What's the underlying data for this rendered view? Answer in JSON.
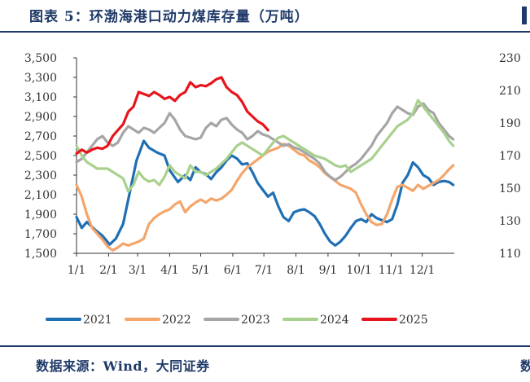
{
  "header": {
    "title": "图表 5：环渤海港口动力煤库存量（万吨）"
  },
  "footer": {
    "source": "数据来源：Wind，大同证券",
    "clipped_text": "数"
  },
  "chart_data": {
    "type": "line",
    "title": "图表 5：环渤海港口动力煤库存量（万吨）",
    "unit": "万吨",
    "x_ticks": [
      "1/1",
      "2/1",
      "3/1",
      "4/1",
      "5/1",
      "6/1",
      "7/1",
      "8/1",
      "9/1",
      "10/1",
      "11/1",
      "12/1"
    ],
    "x_range": [
      0,
      365
    ],
    "y_left_range": [
      1500,
      3500
    ],
    "y_left_ticks": [
      1500,
      1700,
      1900,
      2100,
      2300,
      2500,
      2700,
      2900,
      3100,
      3300,
      3500
    ],
    "y_right_range": [
      110,
      230
    ],
    "y_right_ticks": [
      110,
      130,
      150,
      170,
      190,
      210,
      230
    ],
    "legend_position": "bottom",
    "series": [
      {
        "name": "2021",
        "color": "#1f6fb4",
        "axis": "left",
        "x": [
          0,
          5,
          10,
          18,
          25,
          32,
          38,
          45,
          52,
          58,
          65,
          70,
          78,
          85,
          90,
          98,
          105,
          110,
          115,
          120,
          125,
          130,
          135,
          140,
          145,
          150,
          155,
          160,
          165,
          170,
          175,
          180,
          185,
          190,
          195,
          200,
          205,
          210,
          215,
          220,
          225,
          230,
          235,
          240,
          245,
          250,
          255,
          260,
          265,
          270,
          275,
          280,
          285,
          290,
          295,
          300,
          305,
          310,
          315,
          320,
          325,
          330,
          335,
          340,
          345,
          350,
          355,
          360,
          364
        ],
        "y": [
          1870,
          1760,
          1820,
          1740,
          1680,
          1590,
          1650,
          1800,
          2150,
          2450,
          2650,
          2580,
          2530,
          2500,
          2350,
          2230,
          2300,
          2250,
          2380,
          2330,
          2310,
          2260,
          2330,
          2380,
          2450,
          2500,
          2470,
          2410,
          2420,
          2330,
          2220,
          2150,
          2080,
          2120,
          1980,
          1870,
          1830,
          1920,
          1940,
          1950,
          1920,
          1880,
          1800,
          1700,
          1620,
          1580,
          1620,
          1680,
          1760,
          1830,
          1850,
          1820,
          1900,
          1860,
          1840,
          1820,
          1850,
          2000,
          2220,
          2300,
          2430,
          2380,
          2300,
          2270,
          2200,
          2230,
          2240,
          2230,
          2200
        ]
      },
      {
        "name": "2022",
        "color": "#f4a56a",
        "axis": "left",
        "x": [
          0,
          5,
          10,
          15,
          20,
          25,
          30,
          35,
          40,
          45,
          50,
          55,
          60,
          65,
          70,
          75,
          80,
          85,
          90,
          95,
          100,
          105,
          110,
          115,
          120,
          125,
          130,
          135,
          140,
          145,
          150,
          155,
          160,
          165,
          170,
          175,
          180,
          185,
          190,
          195,
          200,
          205,
          210,
          215,
          220,
          225,
          230,
          235,
          240,
          245,
          250,
          255,
          260,
          265,
          270,
          275,
          280,
          285,
          290,
          295,
          300,
          305,
          310,
          315,
          320,
          325,
          330,
          335,
          340,
          345,
          350,
          355,
          360,
          364
        ],
        "y": [
          2200,
          2080,
          1900,
          1760,
          1700,
          1640,
          1570,
          1530,
          1560,
          1600,
          1580,
          1600,
          1620,
          1650,
          1800,
          1860,
          1900,
          1930,
          1950,
          2000,
          2030,
          1920,
          1980,
          2020,
          2050,
          2020,
          2060,
          2040,
          2060,
          2100,
          2150,
          2240,
          2320,
          2380,
          2420,
          2460,
          2500,
          2540,
          2560,
          2580,
          2620,
          2600,
          2560,
          2520,
          2500,
          2450,
          2420,
          2380,
          2320,
          2280,
          2240,
          2200,
          2180,
          2160,
          2120,
          2000,
          1900,
          1820,
          1790,
          1800,
          1900,
          2050,
          2180,
          2200,
          2170,
          2140,
          2200,
          2160,
          2190,
          2220,
          2250,
          2300,
          2360,
          2400
        ]
      },
      {
        "name": "2023",
        "color": "#a5a5a5",
        "axis": "right",
        "x": [
          0,
          5,
          10,
          15,
          20,
          25,
          30,
          35,
          40,
          45,
          50,
          55,
          60,
          65,
          70,
          75,
          80,
          85,
          90,
          95,
          100,
          105,
          110,
          115,
          120,
          125,
          130,
          135,
          140,
          145,
          150,
          155,
          160,
          165,
          170,
          175,
          180,
          185,
          190,
          195,
          200,
          205,
          210,
          215,
          220,
          225,
          230,
          235,
          240,
          245,
          250,
          255,
          260,
          265,
          270,
          275,
          280,
          285,
          290,
          295,
          300,
          305,
          310,
          315,
          320,
          325,
          330,
          335,
          340,
          345,
          350,
          355,
          360,
          364
        ],
        "y": [
          166,
          168,
          172,
          176,
          180,
          182,
          178,
          176,
          178,
          184,
          188,
          186,
          184,
          187,
          186,
          184,
          187,
          190,
          196,
          192,
          186,
          182,
          181,
          180,
          181,
          187,
          190,
          188,
          192,
          193,
          189,
          186,
          184,
          180,
          182,
          185,
          183,
          182,
          180,
          178,
          176,
          177,
          175,
          174,
          172,
          170,
          168,
          165,
          160,
          157,
          155,
          157,
          160,
          163,
          165,
          168,
          172,
          176,
          182,
          186,
          190,
          196,
          200,
          198,
          196,
          195,
          200,
          202,
          198,
          196,
          190,
          186,
          182,
          180
        ]
      },
      {
        "name": "2024",
        "color": "#a9d18e",
        "axis": "right",
        "x": [
          0,
          5,
          10,
          15,
          20,
          25,
          30,
          35,
          40,
          45,
          50,
          55,
          60,
          65,
          70,
          75,
          80,
          85,
          90,
          95,
          100,
          105,
          110,
          115,
          120,
          125,
          130,
          135,
          140,
          145,
          150,
          155,
          160,
          165,
          170,
          175,
          180,
          185,
          190,
          195,
          200,
          205,
          210,
          215,
          220,
          225,
          230,
          235,
          240,
          245,
          250,
          255,
          260,
          265,
          270,
          275,
          280,
          285,
          290,
          295,
          300,
          305,
          310,
          315,
          320,
          325,
          330,
          335,
          340,
          345,
          350,
          355,
          360,
          364
        ],
        "y": [
          176,
          170,
          166,
          164,
          162,
          162,
          162,
          160,
          158,
          156,
          148,
          152,
          160,
          156,
          154,
          155,
          152,
          157,
          164,
          160,
          158,
          156,
          164,
          160,
          160,
          158,
          160,
          162,
          165,
          168,
          172,
          176,
          178,
          176,
          174,
          172,
          170,
          174,
          178,
          181,
          182,
          180,
          178,
          176,
          174,
          172,
          170,
          169,
          168,
          166,
          164,
          163,
          164,
          160,
          162,
          164,
          166,
          168,
          172,
          176,
          180,
          184,
          188,
          190,
          192,
          196,
          204,
          200,
          196,
          192,
          188,
          184,
          179,
          176
        ]
      },
      {
        "name": "2025",
        "color": "#e8141b",
        "axis": "left",
        "x": [
          0,
          5,
          10,
          15,
          20,
          25,
          30,
          35,
          40,
          45,
          50,
          55,
          60,
          65,
          70,
          75,
          80,
          85,
          90,
          95,
          100,
          105,
          110,
          115,
          120,
          125,
          130,
          135,
          140,
          145,
          150,
          155,
          160,
          165,
          170,
          175,
          180,
          185
        ],
        "y": [
          2520,
          2560,
          2530,
          2560,
          2580,
          2570,
          2600,
          2700,
          2760,
          2820,
          2950,
          3000,
          3150,
          3130,
          3110,
          3150,
          3120,
          3080,
          3100,
          3060,
          3120,
          3150,
          3250,
          3200,
          3220,
          3210,
          3240,
          3280,
          3300,
          3200,
          3150,
          3120,
          3050,
          2950,
          2900,
          2850,
          2820,
          2760
        ]
      }
    ]
  }
}
